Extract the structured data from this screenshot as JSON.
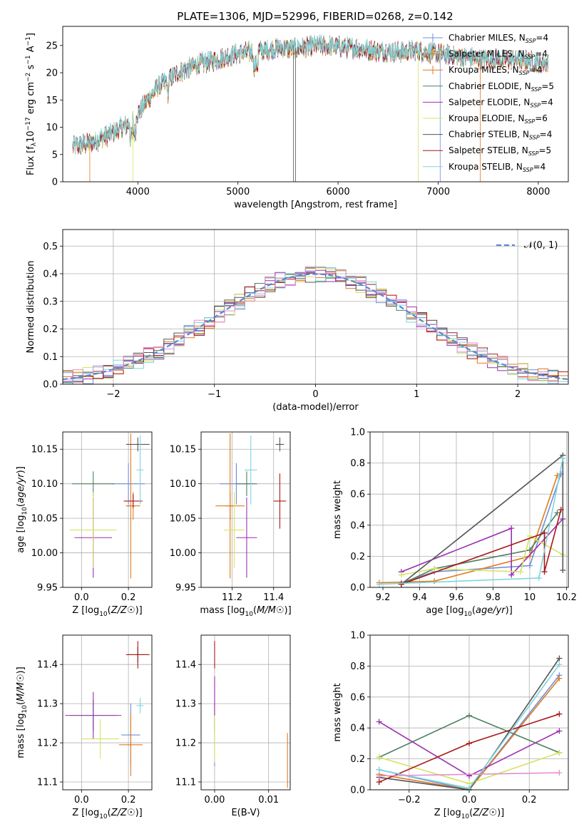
{
  "figure": {
    "title": "PLATE=1306, MJD=52996, FIBERID=0268, z=0.142"
  },
  "colors": {
    "chabrier_miles": "#6f8fd6",
    "salpeter_miles": "#e07a1f",
    "kroupa_miles": "#e07a1f",
    "chabrier_elodie": "#4f8060",
    "salpeter_elodie": "#9b2fb0",
    "kroupa_elodie": "#d4e463",
    "chabrier_stelib": "#555555",
    "salpeter_stelib": "#a81818",
    "kroupa_stelib": "#80d4dc",
    "normal_curve": "#5b86d8",
    "grid": "#b0b0b0"
  },
  "chart_data": [
    {
      "type": "line",
      "id": "spectrum",
      "xlabel": "wavelength [Angstrom, rest frame]",
      "ylabel": "Flux [f_λ 10^-17 erg cm^-2 s^-1 A^-1]",
      "xlim": [
        3250,
        8300
      ],
      "ylim": [
        0,
        28.5
      ],
      "xticks": [
        4000,
        5000,
        6000,
        7000,
        8000
      ],
      "yticks": [
        0,
        5,
        10,
        15,
        20,
        25
      ],
      "grid": false,
      "legend_position": "right",
      "legend": [
        "Chabrier MILES, N_SSP=4",
        "Salpeter MILES, N_SSP=4",
        "Kroupa MILES, N_SSP=4",
        "Chabrier ELODIE, N_SSP=5",
        "Salpeter ELODIE, N_SSP=4",
        "Kroupa ELODIE, N_SSP=6",
        "Chabrier STELIB, N_SSP=4",
        "Salpeter STELIB, N_SSP=5",
        "Kroupa STELIB, N_SSP=4"
      ],
      "continuum": {
        "x": [
          3350,
          3500,
          3700,
          3900,
          4000,
          4100,
          4200,
          4300,
          4400,
          4600,
          4800,
          5000,
          5200,
          5400,
          5600,
          5800,
          6000,
          6200,
          6400,
          6600,
          6800,
          7000,
          7200,
          7400,
          7600,
          7800,
          8000,
          8100
        ],
        "y": [
          6.5,
          7.0,
          8.5,
          10.5,
          12.5,
          15.0,
          17.5,
          18.5,
          20.0,
          21.5,
          22.5,
          23.5,
          24.0,
          24.5,
          24.5,
          25.0,
          24.8,
          24.5,
          24.0,
          23.8,
          24.0,
          23.5,
          23.0,
          22.5,
          22.5,
          22.3,
          22.0,
          21.8
        ]
      }
    },
    {
      "type": "line",
      "id": "residual-distribution",
      "xlabel": "(data-model)/error",
      "ylabel": "Normed distribution",
      "xlim": [
        -2.5,
        2.5
      ],
      "ylim": [
        0,
        0.56
      ],
      "xticks": [
        -2,
        -1,
        0,
        1,
        2
      ],
      "yticks": [
        0.0,
        0.1,
        0.2,
        0.3,
        0.4,
        0.5
      ],
      "grid": true,
      "legend_position": "top-right",
      "legend": [
        "𝒩(0, 1)"
      ],
      "bin_width": 0.1
    },
    {
      "type": "scatter",
      "id": "age-vs-Z",
      "xlabel": "Z [log10(Z/Z☉)]",
      "ylabel": "age  [log10(age/yr)]",
      "xlim": [
        -0.08,
        0.3
      ],
      "ylim": [
        9.95,
        10.175
      ],
      "xticks": [
        0.0,
        0.2
      ],
      "yticks": [
        9.95,
        10.0,
        10.05,
        10.1,
        10.15
      ],
      "grid": true,
      "points": [
        {
          "model": "chabrier_miles",
          "x": 0.2,
          "y": 10.1,
          "xerr": 0.07,
          "yerr": 0.03
        },
        {
          "model": "salpeter_miles",
          "x": 0.22,
          "y": 10.068,
          "xerr": 0.03,
          "yerr": 0.02
        },
        {
          "model": "kroupa_miles",
          "x": 0.21,
          "y": 10.068,
          "xerr": 0.02,
          "yerr": 0.105
        },
        {
          "model": "chabrier_elodie",
          "x": 0.05,
          "y": 10.1,
          "xerr": 0.09,
          "yerr": 0.018
        },
        {
          "model": "salpeter_elodie",
          "x": 0.05,
          "y": 10.022,
          "xerr": 0.08,
          "yerr": 0.058
        },
        {
          "model": "kroupa_elodie",
          "x": 0.05,
          "y": 10.033,
          "xerr": 0.1,
          "yerr": 0.055
        },
        {
          "model": "chabrier_stelib",
          "x": 0.24,
          "y": 10.157,
          "xerr": 0.05,
          "yerr": 0.01
        },
        {
          "model": "salpeter_stelib",
          "x": 0.22,
          "y": 10.075,
          "xerr": 0.04,
          "yerr": 0.01
        },
        {
          "model": "kroupa_stelib",
          "x": 0.25,
          "y": 10.12,
          "xerr": 0.015,
          "yerr": 0.05
        }
      ]
    },
    {
      "type": "scatter",
      "id": "age-vs-mass",
      "xlabel": "mass [log10(M/M☉)]",
      "ylabel": "",
      "xlim": [
        11.05,
        11.48
      ],
      "ylim": [
        9.95,
        10.175
      ],
      "xticks": [
        11.2,
        11.4
      ],
      "yticks": [
        9.95,
        10.0,
        10.05,
        10.1,
        10.15
      ],
      "grid": true,
      "points": [
        {
          "model": "chabrier_miles",
          "x": 11.22,
          "y": 10.1,
          "xerr": 0.08,
          "yerr": 0.03
        },
        {
          "model": "salpeter_miles",
          "x": 11.19,
          "y": 10.068,
          "xerr": 0.07,
          "yerr": 0.02
        },
        {
          "model": "kroupa_miles",
          "x": 11.19,
          "y": 10.068,
          "xerr": 0.02,
          "yerr": 0.105
        },
        {
          "model": "chabrier_elodie",
          "x": 11.27,
          "y": 10.1,
          "xerr": 0.05,
          "yerr": 0.018
        },
        {
          "model": "salpeter_elodie",
          "x": 11.27,
          "y": 10.022,
          "xerr": 0.05,
          "yerr": 0.058
        },
        {
          "model": "kroupa_elodie",
          "x": 11.21,
          "y": 10.033,
          "xerr": 0.05,
          "yerr": 0.055
        },
        {
          "model": "chabrier_stelib",
          "x": 11.43,
          "y": 10.157,
          "xerr": 0.02,
          "yerr": 0.01
        },
        {
          "model": "salpeter_stelib",
          "x": 11.43,
          "y": 10.075,
          "xerr": 0.03,
          "yerr": 0.04
        },
        {
          "model": "kroupa_stelib",
          "x": 11.29,
          "y": 10.12,
          "xerr": 0.03,
          "yerr": 0.05
        }
      ]
    },
    {
      "type": "line",
      "id": "mass-weight-vs-age",
      "xlabel": "age  [log10(age/yr)]",
      "ylabel": "mass weight",
      "xlim": [
        9.13,
        10.21
      ],
      "ylim": [
        0,
        1.0
      ],
      "xticks": [
        9.2,
        9.4,
        9.6,
        9.8,
        10.0,
        10.2
      ],
      "yticks": [
        0.0,
        0.2,
        0.4,
        0.6,
        0.8,
        1.0
      ],
      "grid": true,
      "series": [
        {
          "model": "chabrier_miles",
          "x": [
            9.3,
            9.48,
            10.0,
            10.17
          ],
          "y": [
            0.03,
            0.1,
            0.14,
            0.73
          ]
        },
        {
          "model": "salpeter_miles",
          "x": [
            9.18,
            9.48,
            10.0,
            10.15
          ],
          "y": [
            0.03,
            0.04,
            0.2,
            0.72
          ]
        },
        {
          "model": "chabrier_elodie",
          "x": [
            9.3,
            9.48,
            10.0,
            10.15
          ],
          "y": [
            0.02,
            0.12,
            0.24,
            0.48
          ]
        },
        {
          "model": "salpeter_elodie",
          "x": [
            9.3,
            9.9,
            9.9,
            10.18
          ],
          "y": [
            0.1,
            0.38,
            0.08,
            0.44
          ]
        },
        {
          "model": "kroupa_elodie",
          "x": [
            9.3,
            9.48,
            9.95,
            10.0,
            10.18
          ],
          "y": [
            0.08,
            0.12,
            0.1,
            0.33,
            0.21
          ]
        },
        {
          "model": "chabrier_stelib",
          "x": [
            9.3,
            10.18,
            10.18
          ],
          "y": [
            0.02,
            0.85,
            0.11
          ]
        },
        {
          "model": "salpeter_stelib",
          "x": [
            9.3,
            10.08,
            10.08,
            10.17
          ],
          "y": [
            0.02,
            0.35,
            0.1,
            0.5
          ]
        },
        {
          "model": "kroupa_stelib",
          "x": [
            9.18,
            10.05,
            10.18
          ],
          "y": [
            0.02,
            0.06,
            0.83
          ]
        }
      ]
    },
    {
      "type": "scatter",
      "id": "mass-vs-Z",
      "xlabel": "Z [log10(Z/Z☉)]",
      "ylabel": "mass [log10(M/M☉)]",
      "xlim": [
        -0.08,
        0.3
      ],
      "ylim": [
        11.08,
        11.475
      ],
      "xticks": [
        0.0,
        0.2
      ],
      "yticks": [
        11.1,
        11.2,
        11.3,
        11.4
      ],
      "grid": true,
      "points": [
        {
          "model": "chabrier_miles",
          "x": 0.21,
          "y": 11.22,
          "xerr": 0.04,
          "yerr": 0.08
        },
        {
          "model": "salpeter_miles",
          "x": 0.21,
          "y": 11.195,
          "xerr": 0.05,
          "yerr": 0.08
        },
        {
          "model": "chabrier_elodie",
          "x": 0.05,
          "y": 11.27,
          "xerr": 0.1,
          "yerr": 0.04
        },
        {
          "model": "salpeter_elodie",
          "x": 0.05,
          "y": 11.27,
          "xerr": 0.12,
          "yerr": 0.06
        },
        {
          "model": "kroupa_elodie",
          "x": 0.08,
          "y": 11.21,
          "xerr": 0.08,
          "yerr": 0.05
        },
        {
          "model": "chabrier_stelib",
          "x": 0.24,
          "y": 11.425,
          "xerr": 0.04,
          "yerr": 0.02
        },
        {
          "model": "salpeter_stelib",
          "x": 0.24,
          "y": 11.425,
          "xerr": 0.05,
          "yerr": 0.035
        },
        {
          "model": "kroupa_stelib",
          "x": 0.25,
          "y": 11.295,
          "xerr": 0.015,
          "yerr": 0.02
        }
      ]
    },
    {
      "type": "scatter",
      "id": "mass-vs-EBV",
      "xlabel": "E(B-V)",
      "ylabel": "",
      "xlim": [
        -0.0025,
        0.014
      ],
      "ylim": [
        11.08,
        11.475
      ],
      "xticks": [
        0.0,
        0.01
      ],
      "yticks": [
        11.1,
        11.2,
        11.3,
        11.4
      ],
      "grid": true,
      "points": [
        {
          "model": "chabrier_miles",
          "x": 0.0,
          "y": 11.22,
          "xerr": 0,
          "yerr": 0.08
        },
        {
          "model": "salpeter_miles",
          "x": 0.0135,
          "y": 11.155,
          "xerr": 0,
          "yerr": 0.07
        },
        {
          "model": "salpeter_elodie",
          "x": 0.0,
          "y": 11.3,
          "xerr": 0,
          "yerr": 0.07
        },
        {
          "model": "kroupa_elodie",
          "x": 0.0,
          "y": 11.21,
          "xerr": 0,
          "yerr": 0.06
        },
        {
          "model": "salpeter_stelib",
          "x": 0.0,
          "y": 11.425,
          "xerr": 0,
          "yerr": 0.035
        }
      ]
    },
    {
      "type": "line",
      "id": "mass-weight-vs-Z",
      "xlabel": "Z [log10(Z/Z☉)]",
      "ylabel": "mass weight",
      "xlim": [
        -0.33,
        0.33
      ],
      "ylim": [
        0,
        1.0
      ],
      "xticks": [
        -0.2,
        0.0,
        0.2
      ],
      "yticks": [
        0.0,
        0.2,
        0.4,
        0.6,
        0.8,
        1.0
      ],
      "grid": true,
      "series": [
        {
          "model": "chabrier_miles",
          "x": [
            -0.3,
            0.0,
            0.3
          ],
          "y": [
            0.13,
            0.0,
            0.74
          ]
        },
        {
          "model": "salpeter_miles",
          "x": [
            -0.3,
            0.0,
            0.3
          ],
          "y": [
            0.1,
            0.0,
            0.72
          ]
        },
        {
          "model": "chabrier_elodie",
          "x": [
            -0.3,
            0.0,
            0.3
          ],
          "y": [
            0.21,
            0.48,
            0.24
          ]
        },
        {
          "model": "salpeter_elodie",
          "x": [
            -0.3,
            0.0,
            0.3
          ],
          "y": [
            0.44,
            0.09,
            0.38
          ]
        },
        {
          "model": "kroupa_elodie",
          "x": [
            -0.3,
            0.0,
            0.3
          ],
          "y": [
            0.21,
            0.04,
            0.24
          ]
        },
        {
          "model": "chabrier_stelib",
          "x": [
            -0.3,
            0.0,
            0.3
          ],
          "y": [
            0.08,
            0.0,
            0.85
          ]
        },
        {
          "model": "salpeter_stelib",
          "x": [
            -0.3,
            0.0,
            0.3
          ],
          "y": [
            0.05,
            0.3,
            0.49
          ]
        },
        {
          "model": "kroupa_stelib",
          "x": [
            -0.3,
            0.0,
            0.3
          ],
          "y": [
            0.13,
            0.01,
            0.81
          ]
        },
        {
          "model": "pink",
          "x": [
            -0.3,
            0.3
          ],
          "y": [
            0.09,
            0.11
          ]
        }
      ]
    }
  ]
}
